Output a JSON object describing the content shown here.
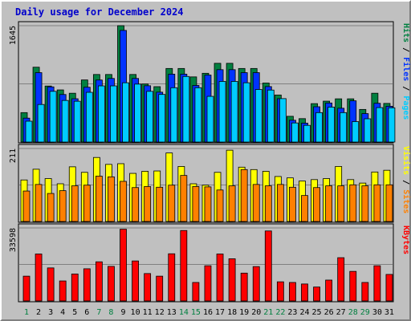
{
  "chart_data": {
    "type": "bar",
    "title": "Daily usage for December 2024",
    "categories": [
      "1",
      "2",
      "3",
      "4",
      "5",
      "6",
      "7",
      "8",
      "9",
      "10",
      "11",
      "12",
      "13",
      "14",
      "15",
      "16",
      "17",
      "18",
      "19",
      "20",
      "21",
      "22",
      "23",
      "24",
      "25",
      "26",
      "27",
      "28",
      "29",
      "30",
      "31"
    ],
    "weekend_days": [
      "1",
      "7",
      "8",
      "14",
      "15",
      "21",
      "22",
      "28",
      "29"
    ],
    "panels": [
      {
        "ylabel_max": "1645",
        "ylim": [
          0,
          1645
        ],
        "label_parts": [
          "Pages",
          "Files",
          "Hits"
        ],
        "label_colors": [
          "#00ccff",
          "#0033ff",
          "#008040"
        ],
        "series": [
          {
            "name": "Hits",
            "color": "#008040",
            "values": [
              416,
              1058,
              792,
              737,
              690,
              878,
              955,
              955,
              1645,
              955,
              821,
              783,
              1040,
              1040,
              921,
              972,
              1113,
              1113,
              1040,
              1040,
              834,
              665,
              364,
              331,
              543,
              578,
              611,
              611,
              461,
              690,
              546
            ]
          },
          {
            "name": "Files",
            "color": "#0033ff",
            "values": [
              338,
              981,
              780,
              672,
              612,
              775,
              877,
              899,
              1578,
              899,
              796,
              705,
              960,
              960,
              800,
              947,
              1023,
              1023,
              981,
              981,
              784,
              613,
              308,
              267,
              499,
              552,
              478,
              583,
              402,
              548,
              506
            ]
          },
          {
            "name": "Pages",
            "color": "#00ccff",
            "values": [
              295,
              531,
              717,
              588,
              577,
              703,
              794,
              794,
              838,
              819,
              717,
              673,
              768,
              927,
              768,
              646,
              857,
              857,
              838,
              743,
              735,
              614,
              270,
              236,
              416,
              494,
              416,
              289,
              329,
              487,
              484
            ]
          }
        ]
      },
      {
        "ylabel_max": "211",
        "ylim": [
          0,
          211
        ],
        "label_parts": [
          "Sites",
          "Visits"
        ],
        "label_colors": [
          "#ff8000",
          "#ffff00"
        ],
        "series": [
          {
            "name": "Visits",
            "color": "#ffff00",
            "values": [
              120,
              151,
              124,
              109,
              158,
              142,
              185,
              165,
              167,
              139,
              145,
              146,
              198,
              159,
              109,
              105,
              142,
              206,
              157,
              150,
              145,
              130,
              126,
              117,
              121,
              124,
              159,
              121,
              111,
              143,
              148
            ]
          },
          {
            "name": "Sites",
            "color": "#ff8000",
            "values": [
              88,
              107,
              81,
              89,
              103,
              105,
              131,
              129,
              116,
              98,
              101,
              99,
              105,
              133,
              101,
              100,
              91,
              103,
              150,
              107,
              103,
              107,
              99,
              75,
              98,
              103,
              103,
              106,
              103,
              106,
              106
            ]
          }
        ]
      },
      {
        "ylabel_max": "33598",
        "ylim": [
          0,
          33598
        ],
        "label_parts": [
          "KBytes"
        ],
        "label_colors": [
          "#ff0000"
        ],
        "series": [
          {
            "name": "KBytes",
            "color": "#ff0000",
            "values": [
              11400,
              21600,
              15200,
              9200,
              12400,
              14800,
              18000,
              15900,
              33000,
              18400,
              12600,
              11400,
              21700,
              32400,
              8500,
              16200,
              21600,
              19400,
              12800,
              15800,
              32200,
              8800,
              8500,
              7800,
              6400,
              9600,
              19900,
              13600,
              8500,
              16200,
              12200
            ]
          }
        ]
      }
    ]
  }
}
